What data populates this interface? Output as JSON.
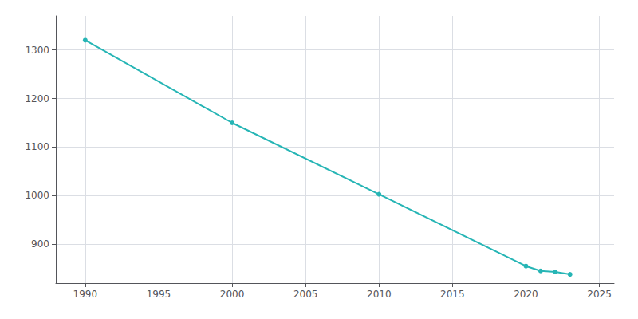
{
  "chart_data": {
    "type": "line",
    "x": [
      1990,
      2000,
      2010,
      2020,
      2021,
      2022,
      2023
    ],
    "values": [
      1320,
      1150,
      1003,
      855,
      845,
      843,
      838
    ],
    "color": "#26b5b5",
    "marker": "circle",
    "xlim": [
      1988,
      2026
    ],
    "xticks": [
      1990,
      1995,
      2000,
      2005,
      2010,
      2015,
      2020,
      2025
    ],
    "ylim": [
      820,
      1370
    ],
    "yticks": [
      900,
      1000,
      1100,
      1200,
      1300
    ],
    "grid": true
  }
}
